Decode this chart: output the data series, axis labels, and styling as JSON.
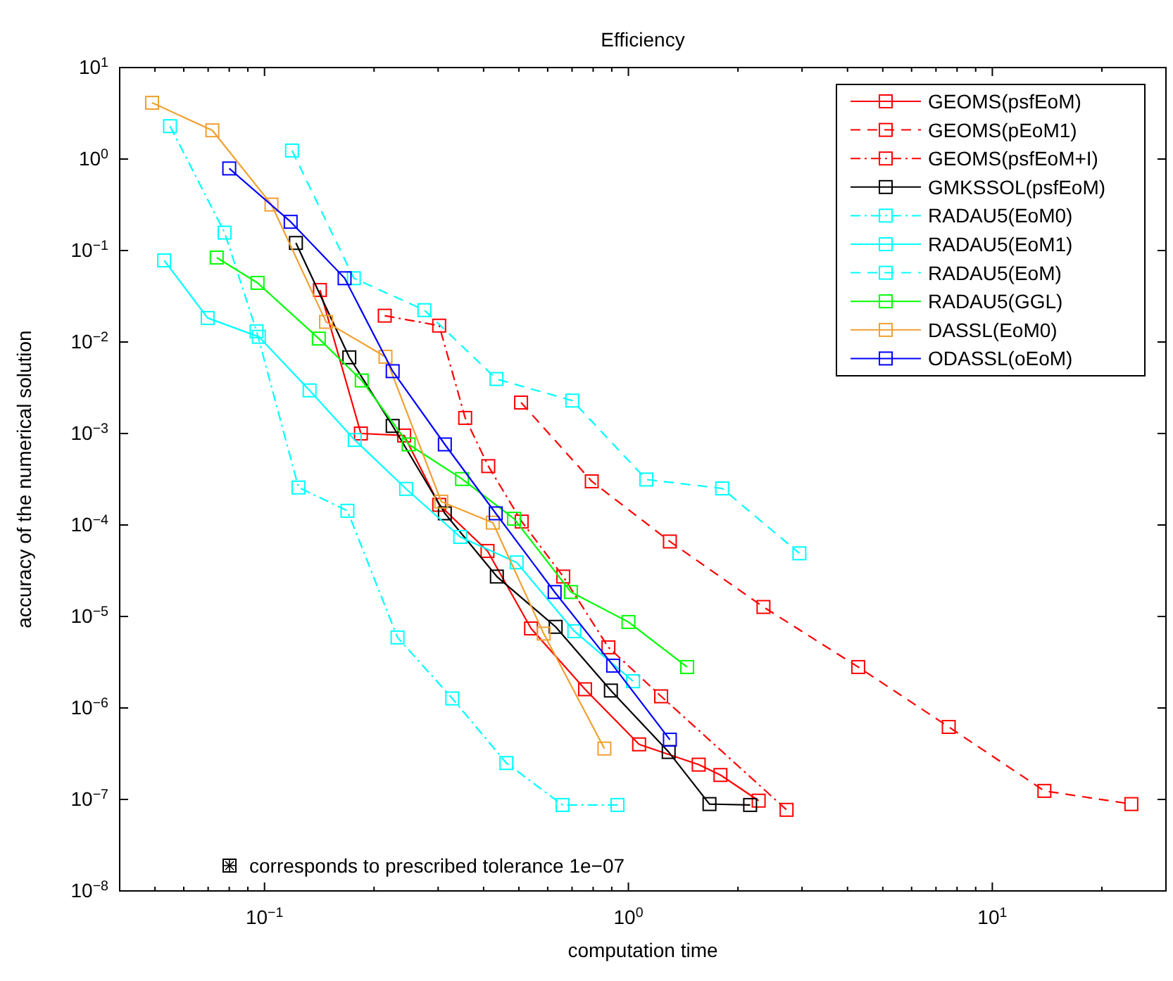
{
  "chart_data": {
    "type": "line",
    "title": "Efficiency",
    "xlabel": "computation time",
    "ylabel": "accuracy of the numerical solution",
    "log": "xy",
    "grid": false,
    "legend": "top right",
    "marker": "square",
    "xlim": [
      0.04,
      30
    ],
    "ylim": [
      1e-08,
      10
    ],
    "xticks": [
      {
        "value": 0.04,
        "label": null
      },
      {
        "value": 0.05,
        "label": null
      },
      {
        "value": 0.06,
        "label": null
      },
      {
        "value": 0.07,
        "label": null
      },
      {
        "value": 0.08,
        "label": null
      },
      {
        "value": 0.09,
        "label": null
      },
      {
        "value": 0.1,
        "label": "10$^{−1}$"
      },
      {
        "value": 0.2,
        "label": null
      },
      {
        "value": 0.3,
        "label": null
      },
      {
        "value": 0.4,
        "label": null
      },
      {
        "value": 0.5,
        "label": null
      },
      {
        "value": 0.6,
        "label": null
      },
      {
        "value": 0.7,
        "label": null
      },
      {
        "value": 0.8,
        "label": null
      },
      {
        "value": 0.9,
        "label": null
      },
      {
        "value": 1,
        "label": "10$^{0}$"
      },
      {
        "value": 2,
        "label": null
      },
      {
        "value": 3,
        "label": null
      },
      {
        "value": 4,
        "label": null
      },
      {
        "value": 5,
        "label": null
      },
      {
        "value": 6,
        "label": null
      },
      {
        "value": 7,
        "label": null
      },
      {
        "value": 8,
        "label": null
      },
      {
        "value": 9,
        "label": null
      },
      {
        "value": 10,
        "label": "10$^{1}$"
      },
      {
        "value": 20,
        "label": null
      },
      {
        "value": 30,
        "label": null
      }
    ],
    "yticks": [
      {
        "value": 1e-08,
        "label": "10$^{−8}$"
      },
      {
        "value": 1e-07,
        "label": "10$^{−7}$"
      },
      {
        "value": 1e-06,
        "label": "10$^{−6}$"
      },
      {
        "value": 1e-05,
        "label": "10$^{−5}$"
      },
      {
        "value": 0.0001,
        "label": "10$^{−4}$"
      },
      {
        "value": 0.001,
        "label": "10$^{−3}$"
      },
      {
        "value": 0.01,
        "label": "10$^{−2}$"
      },
      {
        "value": 0.1,
        "label": "10$^{−1}$"
      },
      {
        "value": 1,
        "label": "10$^{0}$"
      },
      {
        "value": 10,
        "label": "10$^{1}$"
      }
    ],
    "annotations": [
      "corresponds to prescribed tolerance 1e−07"
    ],
    "series": [
      {
        "name": "GEOMS(psfEoM)",
        "color": "#ff0000",
        "line_style": "solid",
        "x": [
          0.142,
          0.184,
          0.242,
          0.302,
          0.41,
          0.54,
          0.76,
          1.07,
          1.56,
          1.79,
          2.28
        ],
        "values": [
          0.037,
          0.001,
          0.00095,
          0.000166,
          5.2e-05,
          7.4e-06,
          1.6e-06,
          4e-07,
          2.4e-07,
          1.85e-07,
          9.7e-08
        ]
      },
      {
        "name": "GEOMS(pEoM1)",
        "color": "#ff0000",
        "line_style": "dashed",
        "x": [
          0.507,
          0.793,
          1.3,
          2.35,
          4.28,
          7.59,
          13.9,
          24.1
        ],
        "values": [
          0.00218,
          0.0003,
          6.6e-05,
          1.27e-05,
          2.8e-06,
          6.2e-07,
          1.24e-07,
          8.9e-08
        ]
      },
      {
        "name": "GEOMS(psfEoM+I)",
        "color": "#ff0000",
        "line_style": "dashdot",
        "x": [
          0.214,
          0.302,
          0.356,
          0.412,
          0.509,
          0.662,
          0.881,
          1.23,
          2.72
        ],
        "values": [
          0.0194,
          0.0151,
          0.00148,
          0.00044,
          0.000109,
          2.73e-05,
          4.6e-06,
          1.34e-06,
          7.7e-08
        ]
      },
      {
        "name": "GMKSSOL(psfEoM)",
        "color": "#000000",
        "line_style": "solid",
        "x": [
          0.122,
          0.171,
          0.225,
          0.313,
          0.435,
          0.631,
          0.895,
          1.29,
          1.67,
          2.16
        ],
        "values": [
          0.121,
          0.0068,
          0.00121,
          0.000134,
          2.73e-05,
          7.7e-06,
          1.55e-06,
          3.3e-07,
          8.9e-08,
          8.7e-08
        ]
      },
      {
        "name": "RADAU5(EoM0)",
        "color": "#00ffff",
        "line_style": "dashdot",
        "x": [
          0.055,
          0.0777,
          0.0951,
          0.124,
          0.169,
          0.232,
          0.328,
          0.462,
          0.659,
          0.933
        ],
        "values": [
          2.29,
          0.157,
          0.0131,
          0.000257,
          0.000143,
          5.9e-06,
          1.27e-06,
          2.5e-07,
          8.7e-08,
          8.7e-08
        ]
      },
      {
        "name": "RADAU5(EoM1)",
        "color": "#00ffff",
        "line_style": "solid",
        "x": [
          0.053,
          0.0698,
          0.0965,
          0.133,
          0.177,
          0.245,
          0.345,
          0.493,
          0.71,
          1.03
        ],
        "values": [
          0.078,
          0.0183,
          0.0114,
          0.00296,
          0.00085,
          0.000248,
          7.4e-05,
          3.9e-05,
          6.9e-06,
          1.96e-06
        ]
      },
      {
        "name": "RADAU5(EoM)",
        "color": "#00ffff",
        "line_style": "dashed",
        "x": [
          0.119,
          0.176,
          0.275,
          0.434,
          0.701,
          1.12,
          1.81,
          2.95
        ],
        "values": [
          1.24,
          0.0498,
          0.0223,
          0.00394,
          0.00229,
          0.000314,
          0.000251,
          4.9e-05
        ]
      },
      {
        "name": "RADAU5(GGL)",
        "color": "#00ff00",
        "line_style": "solid",
        "x": [
          0.0739,
          0.0957,
          0.141,
          0.185,
          0.249,
          0.349,
          0.485,
          0.695,
          1.0,
          1.45
        ],
        "values": [
          0.0838,
          0.0443,
          0.0109,
          0.0038,
          0.00076,
          0.000318,
          0.000117,
          1.85e-05,
          8.7e-06,
          2.8e-06
        ]
      },
      {
        "name": "DASSL(EoM0)",
        "color": "#f0a030",
        "line_style": "solid",
        "x": [
          0.0491,
          0.0719,
          0.1045,
          0.1476,
          0.215,
          0.306,
          0.424,
          0.585,
          0.859
        ],
        "values": [
          4.12,
          2.06,
          0.318,
          0.0166,
          0.0069,
          0.00018,
          0.000106,
          6.5e-06,
          3.6e-07
        ]
      },
      {
        "name": "ODASSL(oEoM)",
        "color": "#0000ff",
        "line_style": "solid",
        "x": [
          0.08,
          0.118,
          0.166,
          0.225,
          0.313,
          0.432,
          0.627,
          0.908,
          1.3
        ],
        "values": [
          0.789,
          0.206,
          0.0498,
          0.0048,
          0.00076,
          0.000134,
          1.85e-05,
          2.9e-06,
          4.5e-07
        ]
      }
    ]
  }
}
